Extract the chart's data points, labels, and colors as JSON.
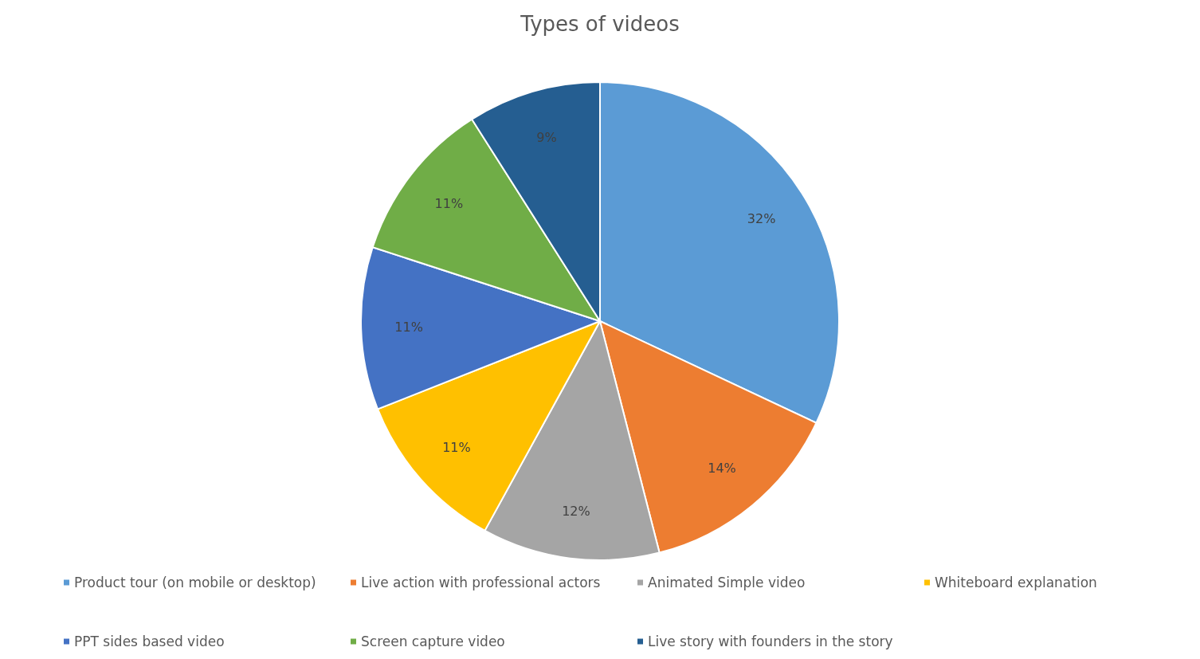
{
  "chart_data": {
    "type": "pie",
    "title": "Types of videos",
    "categories": [
      "Product tour (on mobile or desktop)",
      "Live action with professional actors",
      "Animated Simple video",
      "Whiteboard explanation",
      "PPT sides based video",
      "Screen capture video",
      "Live story with founders in the story"
    ],
    "values": [
      32,
      14,
      12,
      11,
      11,
      11,
      9
    ],
    "colors": [
      "#5b9bd5",
      "#ed7d31",
      "#a5a5a5",
      "#ffc000",
      "#4472c4",
      "#70ad47",
      "#255e91"
    ],
    "value_labels": [
      "32%",
      "14%",
      "12%",
      "11%",
      "11%",
      "11%",
      "9%"
    ],
    "legend": "bottom"
  }
}
